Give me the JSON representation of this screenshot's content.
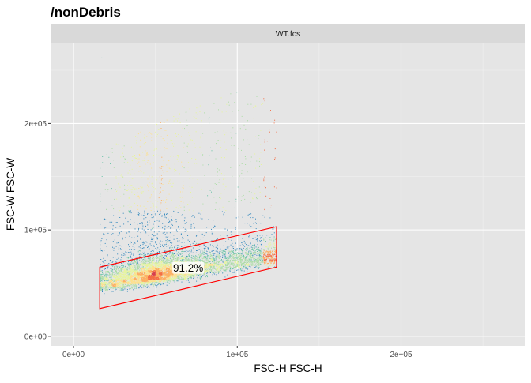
{
  "chart_data": {
    "type": "scatter",
    "title": "/nonDebris",
    "facet_label": "WT.fcs",
    "xlabel": "FSC-H FSC-H",
    "ylabel": "FSC-W FSC-W",
    "xlim": [
      -14000,
      276000
    ],
    "ylim": [
      -9000,
      276000
    ],
    "x_ticks": [
      {
        "value": 0,
        "label": "0e+00"
      },
      {
        "value": 100000,
        "label": "1e+05"
      },
      {
        "value": 200000,
        "label": "2e+05"
      }
    ],
    "y_ticks": [
      {
        "value": 0,
        "label": "0e+00"
      },
      {
        "value": 100000,
        "label": "1e+05"
      },
      {
        "value": 200000,
        "label": "2e+05"
      }
    ],
    "grid": true,
    "density_colors": [
      "#5e4fa2",
      "#3288bd",
      "#66c2a5",
      "#abdda4",
      "#e6f598",
      "#fee08b",
      "#fdae61",
      "#f46d43",
      "#d53e4f"
    ],
    "gate": {
      "color": "#ff0000",
      "polygon": [
        [
          16000,
          26000
        ],
        [
          16000,
          65000
        ],
        [
          124000,
          103000
        ],
        [
          124000,
          65000
        ]
      ],
      "label": "91.2%",
      "label_pos": [
        70000,
        64000
      ]
    },
    "population": {
      "x_range": [
        16000,
        124000
      ],
      "density_peak": [
        50000,
        52000
      ],
      "max_point": [
        17000,
        262000
      ]
    }
  }
}
